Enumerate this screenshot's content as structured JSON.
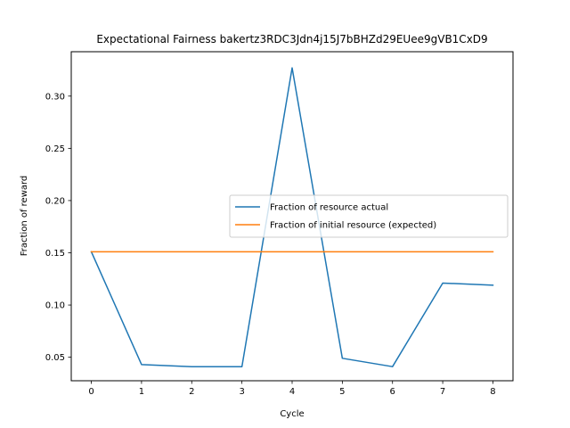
{
  "chart_data": {
    "type": "line",
    "title": "Expectational Fairness bakertz3RDC3Jdn4j15J7bBHZd29EUee9gVB1CxD9",
    "xlabel": "Cycle",
    "ylabel": "Fraction of reward",
    "x": [
      0,
      1,
      2,
      3,
      4,
      5,
      6,
      7,
      8
    ],
    "xlim": [
      -0.4,
      8.4
    ],
    "ylim": [
      0.0275,
      0.3425
    ],
    "x_ticks": [
      "0",
      "1",
      "2",
      "3",
      "4",
      "5",
      "6",
      "7",
      "8"
    ],
    "y_ticks": [
      "0.05",
      "0.10",
      "0.15",
      "0.20",
      "0.25",
      "0.30"
    ],
    "grid": false,
    "legend_position": "center-right",
    "series": [
      {
        "name": "Fraction of resource actual",
        "color": "#1f77b4",
        "values": [
          0.151,
          0.043,
          0.041,
          0.041,
          0.327,
          0.049,
          0.041,
          0.121,
          0.119
        ]
      },
      {
        "name": "Fraction of initial resource (expected)",
        "color": "#ff7f0e",
        "values": [
          0.151,
          0.151,
          0.151,
          0.151,
          0.151,
          0.151,
          0.151,
          0.151,
          0.151
        ]
      }
    ]
  }
}
